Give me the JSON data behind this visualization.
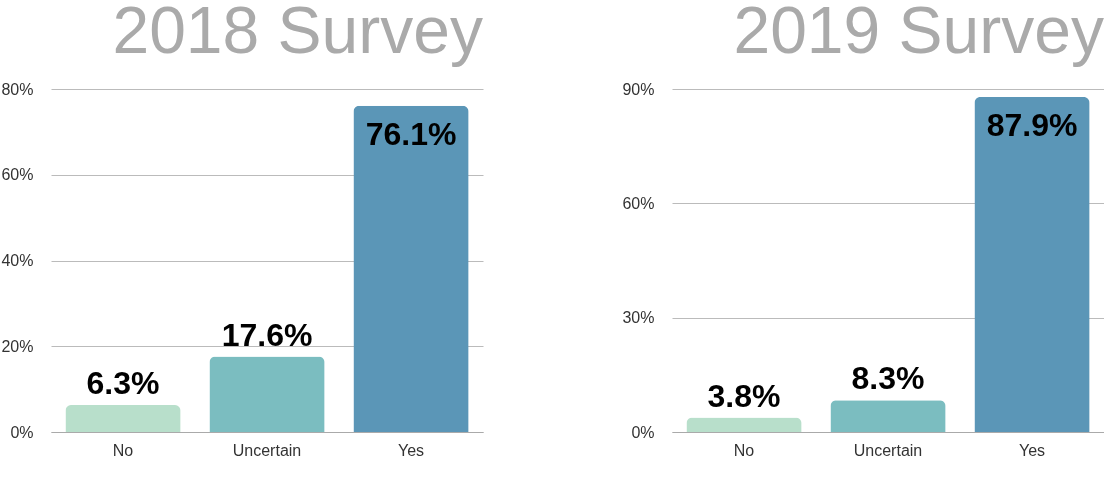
{
  "chart_data": [
    {
      "type": "bar",
      "title": "2018 Survey",
      "categories": [
        "No",
        "Uncertain",
        "Yes"
      ],
      "values": [
        6.3,
        17.6,
        76.1
      ],
      "colors": [
        "#b8dfcb",
        "#7bbdc0",
        "#5b96b7"
      ],
      "value_labels": [
        "6.3%",
        "17.6%",
        "76.1%"
      ],
      "ylim": [
        0,
        80
      ],
      "yticks": [
        {
          "value": 0,
          "label": "0%"
        },
        {
          "value": 20,
          "label": "20%"
        },
        {
          "value": 40,
          "label": "40%"
        },
        {
          "value": 60,
          "label": "60%"
        },
        {
          "value": 80,
          "label": "80%"
        }
      ],
      "grid": "y"
    },
    {
      "type": "bar",
      "title": "2019 Survey",
      "categories": [
        "No",
        "Uncertain",
        "Yes"
      ],
      "values": [
        3.8,
        8.3,
        87.9
      ],
      "colors": [
        "#b8dfcb",
        "#7bbdc0",
        "#5b96b7"
      ],
      "value_labels": [
        "3.8%",
        "8.3%",
        "87.9%"
      ],
      "ylim": [
        0,
        90
      ],
      "yticks": [
        {
          "value": 0,
          "label": "0%"
        },
        {
          "value": 30,
          "label": "30%"
        },
        {
          "value": 60,
          "label": "60%"
        },
        {
          "value": 90,
          "label": "90%"
        }
      ],
      "grid": "y"
    }
  ]
}
